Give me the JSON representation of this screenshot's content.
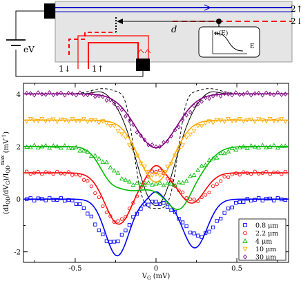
{
  "schematic": {
    "battery_label": "eV",
    "distance_label": "d",
    "edge_label_top": "2↑",
    "edge_label_bottom": "2↓",
    "lead_label_down": "1↓",
    "lead_label_up": "1↑",
    "inset_ylabel": "n(E)",
    "inset_xlabel": "E"
  },
  "chart_data": {
    "type": "scatter",
    "xlabel": "V_G (mV)",
    "ylabel": "(dI_QD/dV_G)/I_QD^max (mV^-1)",
    "xlim": [
      -0.82,
      0.82
    ],
    "ylim": [
      -2.4,
      4.4
    ],
    "xticks": [
      -0.5,
      0,
      0.5
    ],
    "xtick_labels": [
      "-0.5",
      "0",
      "0.5"
    ],
    "yticks": [
      -2,
      0,
      2,
      4
    ],
    "ytick_labels": [
      "-2",
      "0",
      "2",
      "4"
    ],
    "legend_position": "bottom-right",
    "series": [
      {
        "name": "0.8 μm",
        "offset": 0,
        "color": "#0000ff",
        "marker": "square",
        "shape": {
          "base": 0,
          "d1": 2.15,
          "c1": -0.24,
          "s1": 0.072,
          "d2": 1.85,
          "c2": 0.24,
          "s2": 0.075,
          "p": 0.3,
          "pw": 0.035
        },
        "data": {
          "base": 0,
          "d1": 1.65,
          "c1": -0.27,
          "s1": 0.1,
          "d2": 1.4,
          "c2": 0.27,
          "s2": 0.11,
          "p": 0,
          "pw": 0.05
        }
      },
      {
        "name": "2.2 μm",
        "offset": 1,
        "color": "#ff0000",
        "marker": "circle",
        "shape": {
          "base": 0,
          "d1": 1.95,
          "c1": -0.23,
          "s1": 0.085,
          "d2": 1.15,
          "c2": 0.22,
          "s2": 0.08,
          "p": 0.35,
          "pw": 0.04
        },
        "data": {
          "base": 0,
          "d1": 1.85,
          "c1": -0.24,
          "s1": 0.1,
          "d2": 1.05,
          "c2": 0.24,
          "s2": 0.1,
          "p": 0.25,
          "pw": 0.05
        }
      },
      {
        "name": "4 μm",
        "offset": 2,
        "color": "#00bb00",
        "marker": "triangle-up",
        "shape": {
          "base": 0,
          "d1": 1.4,
          "c1": -0.26,
          "s1": 0.08,
          "d2": 1.4,
          "c2": 0.2,
          "s2": 0.1,
          "p": 0,
          "pw": 0.05,
          "w": 1.55,
          "wc": 0,
          "ws": 0.2,
          "wp": 4
        },
        "data": {
          "base": 0,
          "d1": 0.5,
          "c1": -0.3,
          "s1": 0.1,
          "d2": 0.5,
          "c2": 0.3,
          "s2": 0.1,
          "p": 0,
          "pw": 0.05,
          "w": 1.4,
          "wc": 0,
          "ws": 0.25,
          "wp": 4
        }
      },
      {
        "name": "10 μm",
        "offset": 3,
        "color": "#ffaa00",
        "marker": "triangle-down",
        "shape": {
          "base": 0,
          "d1": 0,
          "c1": 0,
          "s1": 0.1,
          "d2": 0,
          "c2": 0,
          "s2": 0.1,
          "p": 0,
          "pw": 0.05,
          "w": 2.35,
          "wc": 0,
          "ws": 0.15,
          "wp": 2
        },
        "data": {
          "base": 0,
          "d1": 0,
          "c1": 0,
          "s1": 0.1,
          "d2": 0,
          "c2": 0,
          "s2": 0.1,
          "p": 0,
          "pw": 0.05,
          "w": 2.1,
          "wc": 0,
          "ws": 0.18,
          "wp": 2
        }
      },
      {
        "name": "30 μm",
        "offset": 4,
        "color": "#800080",
        "marker": "diamond",
        "shape": {
          "base": 0,
          "d1": 0,
          "c1": 0,
          "s1": 0.1,
          "d2": 0,
          "c2": 0,
          "s2": 0.1,
          "p": 0,
          "pw": 0.05,
          "w": 2.05,
          "wc": 0,
          "ws": 0.18,
          "wp": 2
        },
        "data": {
          "base": 0,
          "d1": 0,
          "c1": 0,
          "s1": 0.1,
          "d2": 0,
          "c2": 0,
          "s2": 0.1,
          "p": 0,
          "pw": 0.05,
          "w": 2.0,
          "wc": 0,
          "ws": 0.2,
          "wp": 2
        }
      }
    ],
    "reference_curves": [
      {
        "style": "solid",
        "color": "#000000",
        "shape": {
          "base": 4.0,
          "d1": 0,
          "c1": 0,
          "s1": 0.1,
          "d2": 0,
          "c2": 0,
          "s2": 0.1,
          "p": 0,
          "pw": 0.05,
          "w": 4.25,
          "wc": 0,
          "ws": 0.17,
          "wp": 2,
          "b": 0.15,
          "bc": 0.33,
          "bs": 0.07
        }
      },
      {
        "style": "dashed",
        "color": "#000000",
        "shape": {
          "base": 4.0,
          "d1": 0,
          "c1": 0,
          "s1": 0.1,
          "d2": 0,
          "c2": 0,
          "s2": 0.1,
          "p": 0,
          "pw": 0.05,
          "w": 4.35,
          "wc": 0,
          "ws": 0.15,
          "wp": 4,
          "b": 0.2,
          "bc": 0.33,
          "bs": 0.1
        }
      }
    ]
  }
}
